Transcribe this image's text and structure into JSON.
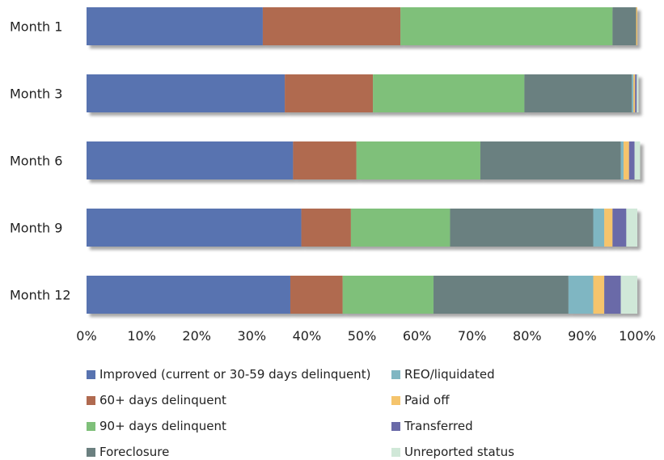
{
  "chart_data": {
    "type": "bar",
    "orientation": "horizontal",
    "stacked": true,
    "categories": [
      "Month 1",
      "Month 3",
      "Month 6",
      "Month 9",
      "Month 12"
    ],
    "xlim": [
      0,
      100
    ],
    "x_ticks": [
      "0%",
      "10%",
      "20%",
      "30%",
      "40%",
      "50%",
      "60%",
      "70%",
      "80%",
      "90%",
      "100%"
    ],
    "grid": false,
    "legend_position": "bottom",
    "series": [
      {
        "name": "Improved (current or 30-59 days delinquent)",
        "color": "#5873b0",
        "values": [
          32,
          36,
          37.5,
          39,
          37
        ]
      },
      {
        "name": "60+ days delinquent",
        "color": "#b06a50",
        "values": [
          25,
          16,
          11.5,
          9,
          9.5
        ]
      },
      {
        "name": "90+ days delinquent",
        "color": "#7fc07a",
        "values": [
          38.5,
          27.5,
          22.5,
          18,
          16.5
        ]
      },
      {
        "name": "Foreclosure",
        "color": "#6b8080",
        "values": [
          4.3,
          19.5,
          25.5,
          26,
          24.5
        ]
      },
      {
        "name": "REO/liquidated",
        "color": "#7fb6c2",
        "values": [
          0,
          0.3,
          0.5,
          2,
          4.5
        ]
      },
      {
        "name": "Paid off",
        "color": "#f5c46c",
        "values": [
          0.2,
          0.3,
          1,
          1.5,
          2
        ]
      },
      {
        "name": "Transferred",
        "color": "#6a6aa8",
        "values": [
          0,
          0.3,
          1,
          2.5,
          3
        ]
      },
      {
        "name": "Unreported status",
        "color": "#d0e8d8",
        "values": [
          0,
          0.3,
          1,
          2,
          3
        ]
      }
    ]
  }
}
